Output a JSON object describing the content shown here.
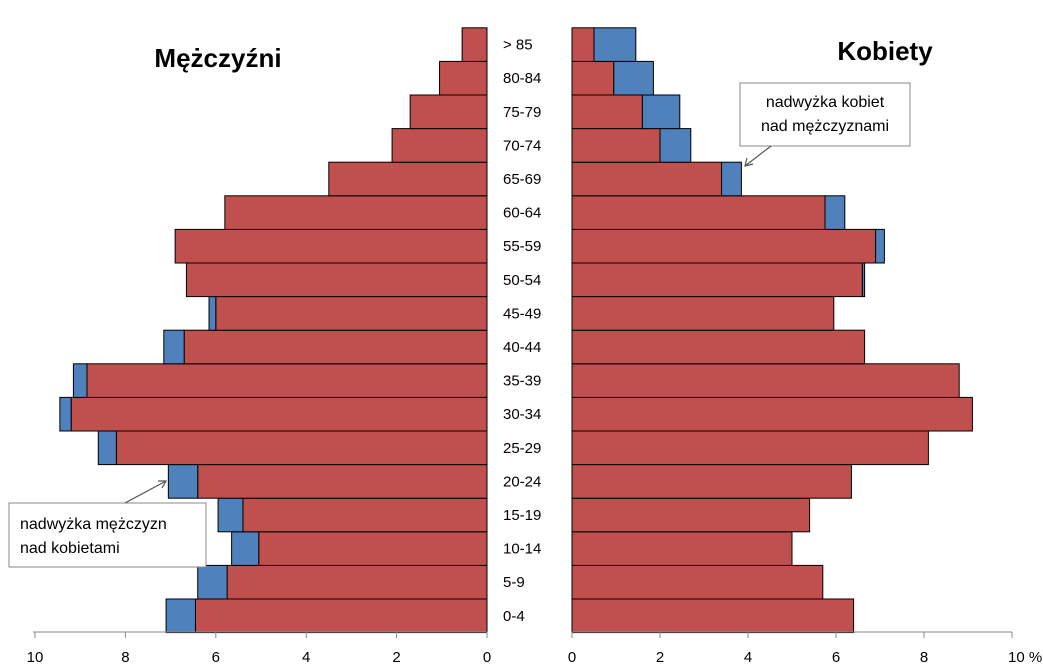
{
  "chart_data": {
    "type": "bar",
    "subtype": "population-pyramid",
    "categories": [
      "0-4",
      "5-9",
      "10-14",
      "15-19",
      "20-24",
      "25-29",
      "30-34",
      "35-39",
      "40-44",
      "45-49",
      "50-54",
      "55-59",
      "60-64",
      "65-69",
      "70-74",
      "75-79",
      "80-84",
      "> 85"
    ],
    "men": {
      "title": "Mężczyźni",
      "common": [
        6.45,
        5.75,
        5.05,
        5.4,
        6.4,
        8.2,
        9.2,
        8.85,
        6.7,
        6.0,
        6.65,
        6.9,
        5.8,
        3.5,
        2.1,
        1.7,
        1.05,
        0.55
      ],
      "surplus": [
        0.65,
        0.65,
        0.6,
        0.55,
        0.65,
        0.4,
        0.25,
        0.3,
        0.45,
        0.15,
        0.0,
        0.0,
        0.0,
        0.0,
        0.0,
        0.0,
        0.0,
        0.0
      ]
    },
    "women": {
      "title": "Kobiety",
      "common": [
        6.4,
        5.7,
        5.0,
        5.4,
        6.35,
        8.1,
        9.1,
        8.8,
        6.65,
        5.95,
        6.6,
        6.9,
        5.75,
        3.4,
        2.0,
        1.6,
        0.95,
        0.5
      ],
      "surplus": [
        0.0,
        0.0,
        0.0,
        0.0,
        0.0,
        0.0,
        0.0,
        0.0,
        0.0,
        0.0,
        0.05,
        0.2,
        0.45,
        0.45,
        0.7,
        0.85,
        0.9,
        0.95
      ]
    },
    "left_axis": {
      "ticks": [
        "10",
        "8",
        "6",
        "4",
        "2",
        "0"
      ],
      "range": [
        10,
        0
      ]
    },
    "right_axis": {
      "ticks": [
        "0",
        "2",
        "4",
        "6",
        "8",
        "10 %"
      ],
      "range": [
        0,
        10
      ]
    },
    "colors": {
      "common": "#c0504d",
      "surplus": "#4f81bd",
      "outline": "#000000",
      "axis": "#888888"
    },
    "annotations": {
      "women_surplus": {
        "line1": "nadwyżka kobiet",
        "line2": "nad mężczyznami"
      },
      "men_surplus": {
        "line1": "nadwyżka mężczyzn",
        "line2": "nad kobietami"
      }
    }
  }
}
